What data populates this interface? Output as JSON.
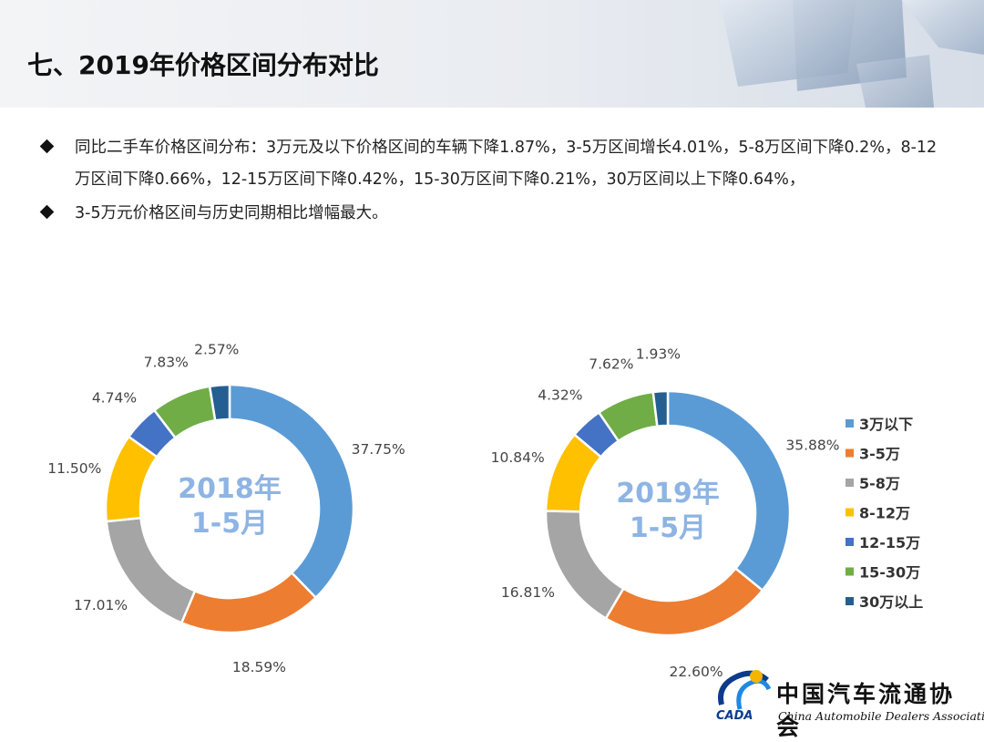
{
  "page": {
    "title": "七、2019年价格区间分布对比",
    "bullets": [
      "同比二手车价格区间分布：3万元及以下价格区间的车辆下降1.87%，3-5万区间增长4.01%，5-8万区间下降0.2%，8-12万区间下降0.66%，12-15万区间下降0.42%，15-30万区间下降0.21%，30万区间以上下降0.64%，",
      "3-5万元价格区间与历史同期相比增幅最大。"
    ]
  },
  "logo": {
    "chinese": "中国汽车流通协会",
    "english": "China Automobile Dealers Association",
    "abbr": "CADA"
  },
  "chart_data": [
    {
      "type": "pie",
      "center_label": [
        "2018年",
        "1-5月"
      ],
      "categories": [
        "3万以下",
        "3-5万",
        "5-8万",
        "8-12万",
        "12-15万",
        "15-30万",
        "30万以上"
      ],
      "values": [
        37.75,
        18.59,
        17.01,
        11.5,
        4.74,
        7.83,
        2.57
      ],
      "labels": [
        "37.75%",
        "18.59%",
        "17.01%",
        "11.50%",
        "4.74%",
        "7.83%",
        "2.57%"
      ],
      "colors": [
        "#5b9bd5",
        "#ed7d31",
        "#a5a5a5",
        "#ffc000",
        "#4472c4",
        "#70ad47",
        "#255e91"
      ]
    },
    {
      "type": "pie",
      "center_label": [
        "2019年",
        "1-5月"
      ],
      "categories": [
        "3万以下",
        "3-5万",
        "5-8万",
        "8-12万",
        "12-15万",
        "15-30万",
        "30万以上"
      ],
      "values": [
        35.88,
        22.6,
        16.81,
        10.84,
        4.32,
        7.62,
        1.93
      ],
      "labels": [
        "35.88%",
        "22.60%",
        "16.81%",
        "10.84%",
        "4.32%",
        "7.62%",
        "1.93%"
      ],
      "colors": [
        "#5b9bd5",
        "#ed7d31",
        "#a5a5a5",
        "#ffc000",
        "#4472c4",
        "#70ad47",
        "#255e91"
      ],
      "legend": [
        "3万以下",
        "3-5万",
        "5-8万",
        "8-12万",
        "12-15万",
        "15-30万",
        "30万以上"
      ],
      "legend_position": "right"
    }
  ]
}
